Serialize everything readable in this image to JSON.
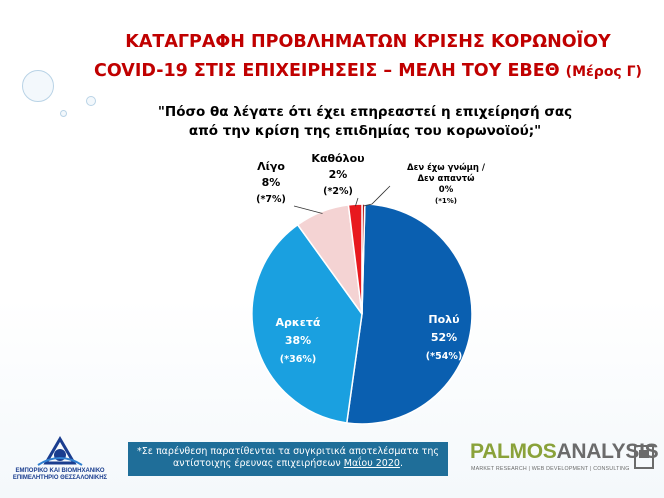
{
  "title": {
    "line1": "ΚΑΤΑΓΡΑΦΗ ΠΡΟΒΛΗΜΑΤΩΝ ΚΡΙΣΗΣ ΚΟΡΩΝΟΪΟΥ",
    "line2": "COVID-19 ΣΤΙΣ ΕΠΙΧΕΙΡΗΣΕΙΣ – ΜΕΛΗ ΤΟΥ ΕΒΕΘ",
    "suffix": "(Μέρος Γ)"
  },
  "question": {
    "line1": "\"Πόσο θα λέγατε ότι έχει επηρεαστεί η επιχείρησή σας",
    "line2": "από την κρίση της επιδημίας του κορωνοϊού;\""
  },
  "chart_data": {
    "type": "pie",
    "slices": [
      {
        "name": "Πολύ",
        "value": 52,
        "value_label": "52%",
        "previous_label": "(*54%)",
        "color": "#0a5fb0"
      },
      {
        "name": "Αρκετά",
        "value": 38,
        "value_label": "38%",
        "previous_label": "(*36%)",
        "color": "#1aa0e0"
      },
      {
        "name": "Λίγο",
        "value": 8,
        "value_label": "8%",
        "previous_label": "(*7%)",
        "color": "#f4d3d3"
      },
      {
        "name": "Καθόλου",
        "value": 2,
        "value_label": "2%",
        "previous_label": "(*2%)",
        "color": "#e8191e"
      },
      {
        "name_line1": "Δεν έχω γνώμη /",
        "name_line2": "Δεν απαντώ",
        "value": 0.4,
        "value_label": "0%",
        "previous_label": "(*1%)",
        "color": "#b71c1c"
      }
    ]
  },
  "footnote": {
    "line1": "*Σε παρένθεση παρατίθενται τα συγκριτικά αποτελέσματα της",
    "line2_pre": "αντίστοιχης έρευνας επιχειρήσεων ",
    "line2_u": "Μαΐου 2020",
    "line2_post": "."
  },
  "logo_left": {
    "line1": "ΕΜΠΟΡΙΚΟ ΚΑΙ ΒΙΟΜΗΧΑΝΙΚΟ",
    "line2": "ΕΠΙΜΕΛΗΤΗΡΙΟ ΘΕΣΣΑΛΟΝΙΚΗΣ"
  },
  "logo_right": {
    "brand_a": "PALMOS",
    "brand_b": "ANALYSIS",
    "tagline": "MARKET RESEARCH | WEB DEVELOPMENT | CONSULTING"
  }
}
